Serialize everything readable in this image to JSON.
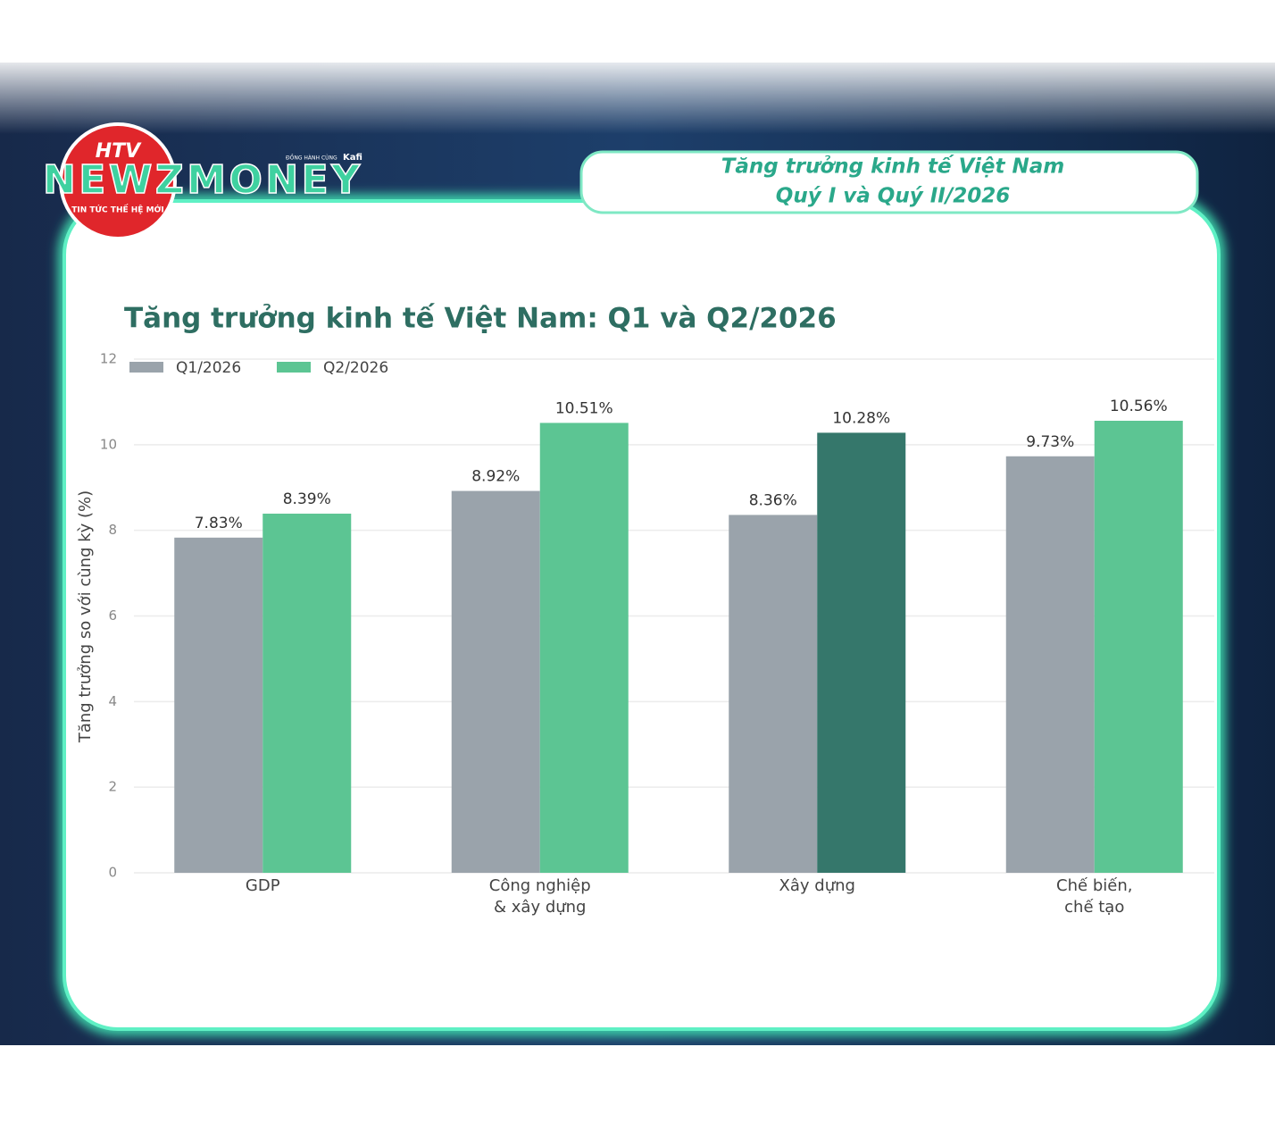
{
  "branding": {
    "channel": "HTV",
    "brand": "NEWZMONEY",
    "slogan": "TIN TỨC THẾ HỆ MỚI",
    "partner_prefix": "ĐỒNG HÀNH CÙNG",
    "partner": "Kafi"
  },
  "header": {
    "line1": "Tăng trưởng kinh tế Việt Nam",
    "line2": "Quý I và Quý II/2026"
  },
  "chart_data": {
    "type": "bar",
    "title": "Tăng trưởng kinh tế Việt Nam: Q1 và Q2/2026",
    "y_label": "Tăng trưởng so với cùng kỳ (%)",
    "categories": [
      "GDP",
      "Công nghiệp\n& xây dựng",
      "Xây dựng",
      "Chế biến,\nchế tạo"
    ],
    "series": [
      {
        "name": "Q1/2026",
        "color": "#9aa3ab",
        "colors": [
          "#9aa3ab",
          "#9aa3ab",
          "#9aa3ab",
          "#9aa3ab"
        ],
        "values": [
          7.83,
          8.92,
          8.36,
          9.73
        ],
        "value_labels": [
          "7.83%",
          "8.92%",
          "8.36%",
          "9.73%"
        ]
      },
      {
        "name": "Q2/2026",
        "color": "#5cc593",
        "colors": [
          "#5cc593",
          "#5cc593",
          "#35776b",
          "#5cc593"
        ],
        "values": [
          8.39,
          10.51,
          10.28,
          10.56
        ],
        "value_labels": [
          "8.39%",
          "10.51%",
          "10.28%",
          "10.56%"
        ]
      }
    ],
    "ylim": [
      0,
      12
    ],
    "yticks": [
      0,
      2,
      4,
      6,
      8,
      10,
      12
    ],
    "grid": true,
    "legend": "top-left"
  }
}
